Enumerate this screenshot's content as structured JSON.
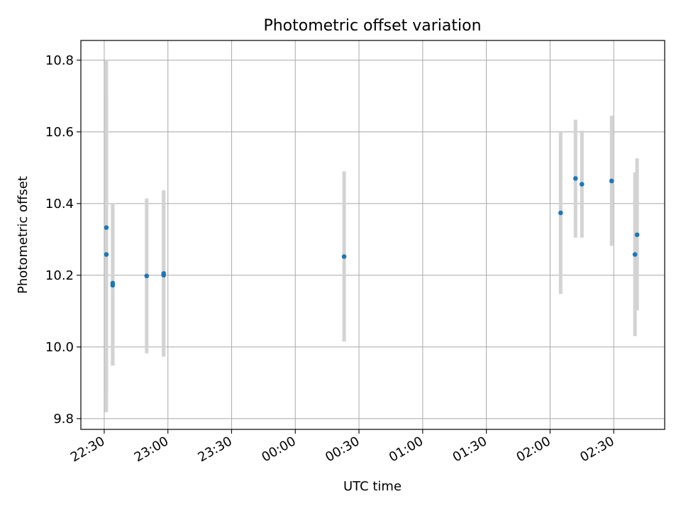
{
  "chart_data": {
    "type": "scatter",
    "title": "Photometric offset variation",
    "xlabel": "UTC time",
    "ylabel": "Photometric offset",
    "grid": true,
    "x_ticks": [
      "22:30",
      "23:00",
      "23:30",
      "00:00",
      "00:30",
      "01:00",
      "01:30",
      "02:00",
      "02:30"
    ],
    "x_range": [
      "22:19",
      "02:54"
    ],
    "x_tick_label_rotation": "30 degrees",
    "ylim": [
      9.77,
      10.855
    ],
    "y_ticks": [
      "9.8",
      "10.0",
      "10.2",
      "10.4",
      "10.6",
      "10.8"
    ],
    "marker_color": "#1f77b4",
    "errorbar_color": "#d3d3d3",
    "points": [
      {
        "x": "22:31",
        "y": 10.333,
        "ylow": 9.866,
        "yhigh": 10.8
      },
      {
        "x": "22:31",
        "y": 10.258,
        "ylow": 9.818,
        "yhigh": 10.698
      },
      {
        "x": "22:34",
        "y": 10.178,
        "ylow": 9.948,
        "yhigh": 10.4
      },
      {
        "x": "22:34",
        "y": 10.172,
        "ylow": 9.948,
        "yhigh": 10.4
      },
      {
        "x": "22:50",
        "y": 10.198,
        "ylow": 9.982,
        "yhigh": 10.414
      },
      {
        "x": "22:58",
        "y": 10.205,
        "ylow": 9.973,
        "yhigh": 10.437
      },
      {
        "x": "22:58",
        "y": 10.2,
        "ylow": 9.973,
        "yhigh": 10.43
      },
      {
        "x": "00:23",
        "y": 10.252,
        "ylow": 10.015,
        "yhigh": 10.49
      },
      {
        "x": "02:05",
        "y": 10.374,
        "ylow": 10.148,
        "yhigh": 10.6
      },
      {
        "x": "02:12",
        "y": 10.47,
        "ylow": 10.305,
        "yhigh": 10.634
      },
      {
        "x": "02:15",
        "y": 10.454,
        "ylow": 10.305,
        "yhigh": 10.603
      },
      {
        "x": "02:29",
        "y": 10.463,
        "ylow": 10.282,
        "yhigh": 10.645
      },
      {
        "x": "02:40",
        "y": 10.258,
        "ylow": 10.03,
        "yhigh": 10.487
      },
      {
        "x": "02:41",
        "y": 10.313,
        "ylow": 10.102,
        "yhigh": 10.526
      }
    ]
  }
}
